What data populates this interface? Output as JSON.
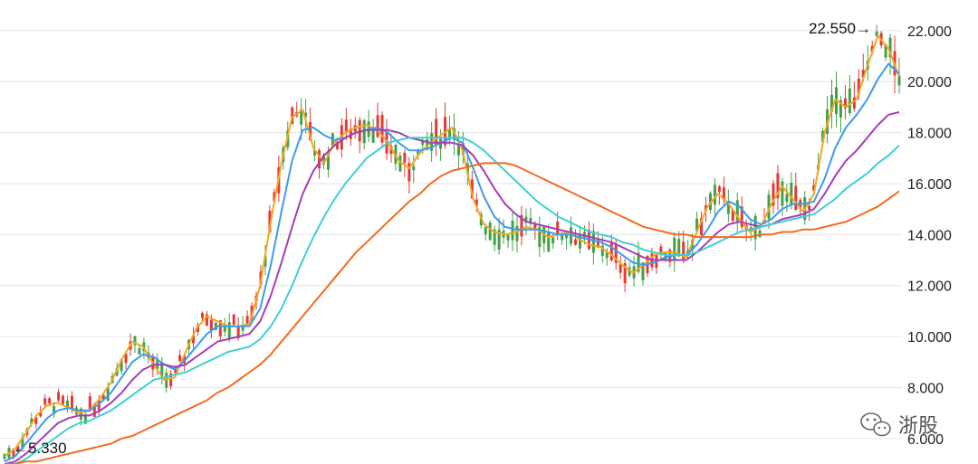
{
  "chart_data": {
    "type": "line",
    "title": "",
    "xlabel": "",
    "ylabel": "",
    "ylim": [
      5.0,
      23.2
    ],
    "y_ticks": [
      "6.000",
      "8.000",
      "10.000",
      "12.000",
      "14.000",
      "16.000",
      "18.000",
      "20.000",
      "22.000"
    ],
    "y_tick_values": [
      6,
      8,
      10,
      12,
      14,
      16,
      18,
      20,
      22
    ],
    "grid": "horizontal",
    "candlestick_colors": {
      "up": "#e53935",
      "down": "#43a047"
    },
    "annotations": {
      "high": {
        "label": "22.550→",
        "value": 22.55
      },
      "low": {
        "label": "←5.330",
        "value": 5.33
      }
    },
    "series": [
      {
        "color": "#f5a623",
        "values": [
          5.3,
          5.6,
          6.2,
          6.9,
          7.3,
          7.4,
          7.2,
          7.0,
          7.1,
          7.6,
          8.2,
          9.1,
          9.8,
          9.6,
          8.9,
          8.3,
          8.4,
          9.4,
          10.3,
          10.8,
          10.6,
          10.4,
          10.4,
          10.5,
          12.0,
          14.5,
          16.8,
          18.6,
          18.9,
          17.4,
          16.8,
          17.6,
          18.0,
          18.2,
          18.3,
          18.1,
          17.6,
          16.9,
          16.6,
          17.2,
          17.6,
          17.9,
          18.2,
          17.3,
          15.4,
          14.4,
          14.1,
          14.0,
          14.1,
          14.3,
          14.2,
          13.9,
          14.0,
          14.1,
          13.8,
          13.6,
          13.5,
          13.2,
          12.8,
          12.5,
          12.8,
          13.2,
          13.3,
          13.3,
          13.1,
          14.1,
          15.1,
          15.6,
          15.2,
          14.6,
          14.1,
          14.3,
          15.2,
          15.9,
          15.4,
          14.9,
          15.6,
          18.0,
          19.3,
          19.0,
          19.3,
          20.6,
          21.8,
          21.3,
          20.2
        ]
      },
      {
        "color": "#3b9cf0",
        "values": [
          5.1,
          5.3,
          5.8,
          6.3,
          6.8,
          7.1,
          7.2,
          7.1,
          7.1,
          7.4,
          7.8,
          8.4,
          9.0,
          9.3,
          9.2,
          8.9,
          8.7,
          9.1,
          9.6,
          10.1,
          10.4,
          10.4,
          10.4,
          10.4,
          11.1,
          12.8,
          14.9,
          16.9,
          18.1,
          18.2,
          17.9,
          17.7,
          17.8,
          18.0,
          18.1,
          18.2,
          18.0,
          17.6,
          17.3,
          17.3,
          17.4,
          17.6,
          17.8,
          17.6,
          16.6,
          15.5,
          14.7,
          14.3,
          14.2,
          14.2,
          14.2,
          14.1,
          14.0,
          14.0,
          13.9,
          13.8,
          13.7,
          13.5,
          13.2,
          12.9,
          12.8,
          12.9,
          13.1,
          13.2,
          13.2,
          13.6,
          14.2,
          14.9,
          15.3,
          15.1,
          14.6,
          14.4,
          14.6,
          15.0,
          15.2,
          15.2,
          15.3,
          16.2,
          17.4,
          18.2,
          18.7,
          19.3,
          20.1,
          20.7,
          20.3
        ]
      },
      {
        "color": "#a63db8",
        "values": [
          5.0,
          5.1,
          5.4,
          5.8,
          6.2,
          6.6,
          6.8,
          6.9,
          6.9,
          7.1,
          7.4,
          7.8,
          8.3,
          8.7,
          8.9,
          8.9,
          8.8,
          8.9,
          9.2,
          9.5,
          9.8,
          9.9,
          10.0,
          10.1,
          10.6,
          11.6,
          12.9,
          14.3,
          15.6,
          16.5,
          17.1,
          17.5,
          17.8,
          18.0,
          18.1,
          18.1,
          18.1,
          18.0,
          17.8,
          17.7,
          17.6,
          17.6,
          17.6,
          17.5,
          17.1,
          16.5,
          15.8,
          15.2,
          14.8,
          14.5,
          14.4,
          14.3,
          14.2,
          14.1,
          14.0,
          13.9,
          13.8,
          13.7,
          13.5,
          13.3,
          13.1,
          13.0,
          13.0,
          13.0,
          13.0,
          13.3,
          13.7,
          14.1,
          14.4,
          14.5,
          14.4,
          14.3,
          14.4,
          14.6,
          14.7,
          14.8,
          15.0,
          15.6,
          16.3,
          16.9,
          17.3,
          17.8,
          18.3,
          18.7,
          18.8
        ]
      },
      {
        "color": "#3fcfd4",
        "values": [
          5.0,
          5.0,
          5.2,
          5.5,
          5.8,
          6.1,
          6.4,
          6.6,
          6.7,
          6.9,
          7.1,
          7.4,
          7.7,
          8.0,
          8.3,
          8.4,
          8.5,
          8.6,
          8.8,
          9.0,
          9.2,
          9.4,
          9.5,
          9.6,
          9.9,
          10.4,
          11.1,
          12.0,
          13.0,
          13.9,
          14.7,
          15.4,
          16.0,
          16.5,
          17.0,
          17.3,
          17.6,
          17.7,
          17.8,
          17.8,
          17.8,
          17.8,
          17.8,
          17.8,
          17.6,
          17.3,
          16.9,
          16.5,
          16.1,
          15.7,
          15.3,
          15.0,
          14.7,
          14.5,
          14.3,
          14.1,
          14.0,
          13.9,
          13.7,
          13.6,
          13.4,
          13.3,
          13.2,
          13.2,
          13.2,
          13.3,
          13.5,
          13.7,
          13.9,
          14.1,
          14.2,
          14.3,
          14.4,
          14.5,
          14.6,
          14.7,
          14.8,
          15.1,
          15.4,
          15.8,
          16.1,
          16.4,
          16.8,
          17.1,
          17.5
        ]
      },
      {
        "color": "#f26b21",
        "values": [
          5.0,
          5.0,
          5.1,
          5.1,
          5.2,
          5.3,
          5.4,
          5.5,
          5.6,
          5.7,
          5.8,
          6.0,
          6.1,
          6.3,
          6.5,
          6.7,
          6.9,
          7.1,
          7.3,
          7.5,
          7.8,
          8.0,
          8.3,
          8.6,
          8.9,
          9.3,
          9.8,
          10.3,
          10.8,
          11.3,
          11.8,
          12.3,
          12.8,
          13.3,
          13.7,
          14.1,
          14.5,
          14.9,
          15.3,
          15.6,
          16.0,
          16.3,
          16.5,
          16.6,
          16.7,
          16.8,
          16.8,
          16.8,
          16.7,
          16.5,
          16.3,
          16.1,
          15.9,
          15.7,
          15.5,
          15.3,
          15.1,
          14.9,
          14.7,
          14.5,
          14.3,
          14.2,
          14.1,
          14.0,
          14.0,
          13.9,
          13.9,
          13.9,
          13.9,
          13.9,
          13.9,
          14.0,
          14.0,
          14.1,
          14.1,
          14.2,
          14.2,
          14.3,
          14.4,
          14.5,
          14.7,
          14.9,
          15.1,
          15.4,
          15.7
        ]
      }
    ]
  },
  "watermark": {
    "text": "浙股",
    "icon": "wechat-icon"
  }
}
